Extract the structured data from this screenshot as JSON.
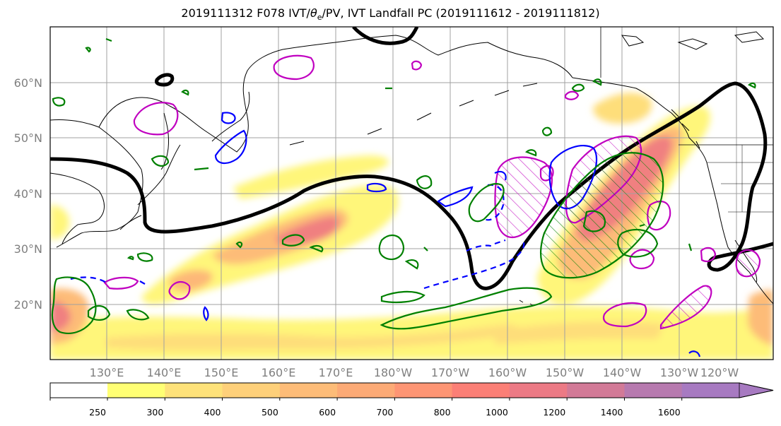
{
  "title": {
    "prefix": "2019111312 F078 IVT/",
    "theta_sym": "θ",
    "theta_sub": "e",
    "suffix": "/PV, IVT Landfall PC (2019111612 - 2019111812)"
  },
  "lat_labels": [
    "60°N",
    "50°N",
    "40°N",
    "30°N",
    "20°N"
  ],
  "lon_labels": [
    "130°E",
    "140°E",
    "150°E",
    "160°E",
    "170°E",
    "180°W",
    "170°W",
    "160°W",
    "150°W",
    "140°W",
    "130°W",
    "120°W"
  ],
  "colorbar": {
    "ticks": [
      "250",
      "300",
      "400",
      "500",
      "600",
      "700",
      "800",
      "1000",
      "1200",
      "1400",
      "1600"
    ],
    "colors": [
      "#ffff74",
      "#fee27a",
      "#fed07a",
      "#fdbc78",
      "#fcaa76",
      "#fd9574",
      "#fb7f76",
      "#ec7a85",
      "#d27a97",
      "#b77aaf",
      "#a77ac1"
    ]
  },
  "colors": {
    "ivt_low": "#fff67a",
    "ivt_high": "#f08080",
    "contour_black": "#000000",
    "theta_green": "#008000",
    "pv_blue": "#0000ff",
    "pv_magenta": "#c000c0",
    "grid": "#a0a0a0"
  }
}
